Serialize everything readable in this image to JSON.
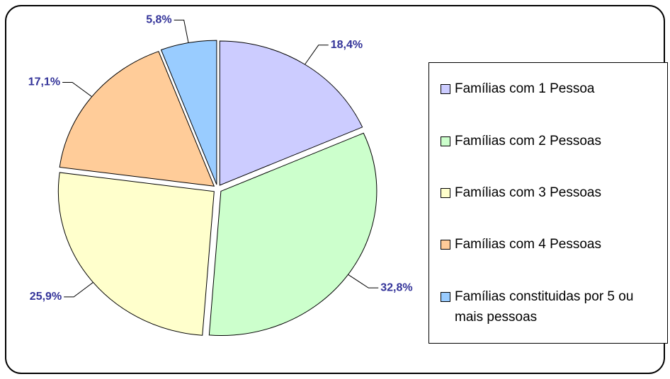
{
  "chart_data": {
    "type": "pie",
    "categories": [
      "Famílias com 1 Pessoa",
      "Famílias com 2 Pessoas",
      "Famílias com 3 Pessoas",
      "Famílias com 4 Pessoas",
      "Famílias constituidas por 5 ou mais pessoas"
    ],
    "values": [
      18.4,
      32.8,
      25.9,
      17.1,
      5.8
    ],
    "value_labels": [
      "18,4%",
      "32,8%",
      "25,9%",
      "17,1%",
      "5,8%"
    ],
    "colors": [
      "#ccccff",
      "#ccffcc",
      "#ffffcc",
      "#ffcc99",
      "#99ccff"
    ],
    "legend": "right"
  }
}
